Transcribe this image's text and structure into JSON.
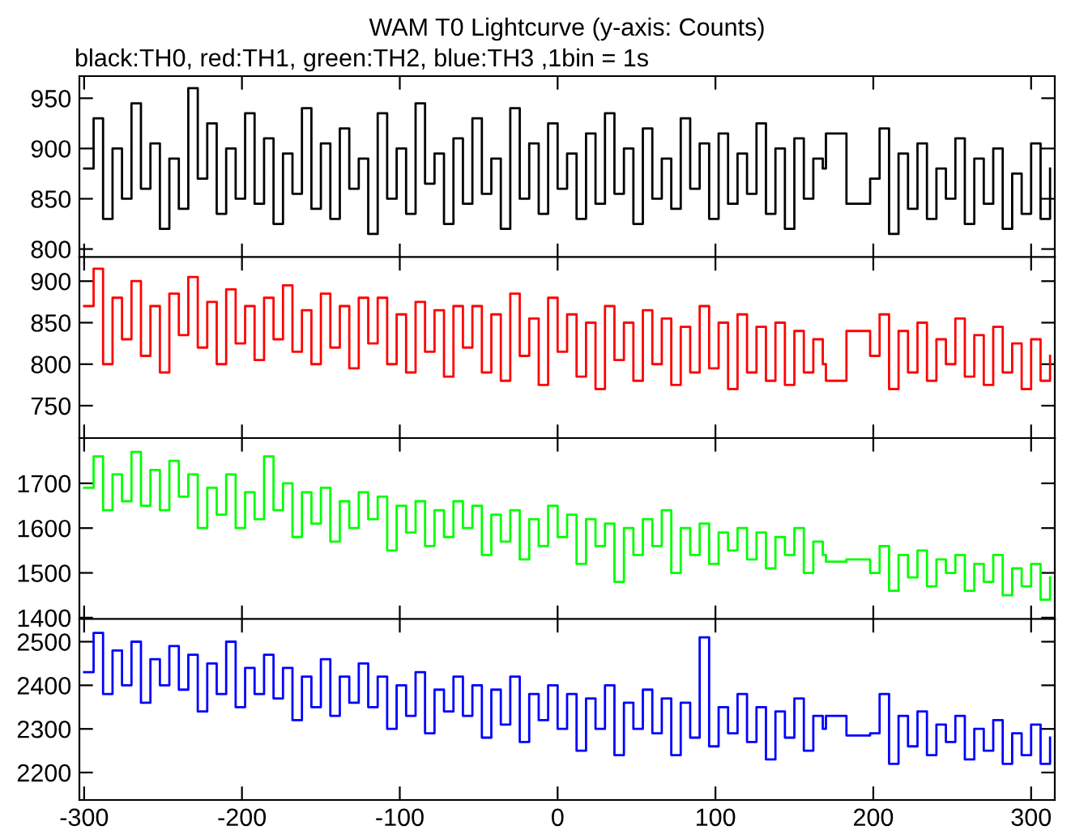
{
  "chart_data": [
    {
      "type": "step",
      "title": "WAM T0 Lightcurve (y-axis: Counts)",
      "subtitle": "black:TH0, red:TH1, green:TH2, blue:TH3 ,1bin = 1s",
      "x": [
        -300,
        -294,
        -288,
        -282,
        -276,
        -270,
        -264,
        -258,
        -252,
        -246,
        -240,
        -234,
        -228,
        -222,
        -216,
        -210,
        -204,
        -198,
        -192,
        -186,
        -180,
        -174,
        -168,
        -162,
        -156,
        -150,
        -144,
        -138,
        -132,
        -126,
        -120,
        -114,
        -108,
        -102,
        -96,
        -90,
        -84,
        -78,
        -72,
        -66,
        -60,
        -54,
        -48,
        -42,
        -36,
        -30,
        -24,
        -18,
        -12,
        -6,
        0,
        6,
        12,
        18,
        24,
        30,
        36,
        42,
        48,
        54,
        60,
        66,
        72,
        78,
        84,
        90,
        96,
        102,
        108,
        114,
        120,
        126,
        132,
        138,
        144,
        150,
        156,
        162,
        168,
        170,
        183,
        198,
        204,
        210,
        216,
        222,
        228,
        234,
        240,
        246,
        252,
        258,
        264,
        270,
        276,
        282,
        288,
        294,
        300,
        306,
        312
      ],
      "series": [
        {
          "color": "#000000",
          "values": [
            880,
            930,
            830,
            900,
            850,
            945,
            860,
            905,
            820,
            890,
            840,
            960,
            870,
            925,
            835,
            900,
            850,
            935,
            845,
            910,
            825,
            895,
            855,
            940,
            840,
            905,
            830,
            920,
            860,
            890,
            815,
            935,
            850,
            900,
            835,
            945,
            865,
            895,
            825,
            910,
            845,
            930,
            855,
            890,
            820,
            940,
            850,
            905,
            835,
            925,
            860,
            895,
            830,
            915,
            845,
            935,
            855,
            900,
            825,
            920,
            850,
            890,
            840,
            930,
            860,
            905,
            830,
            915,
            845,
            895,
            855,
            925,
            835,
            900,
            820,
            910,
            850,
            890,
            880,
            915,
            845,
            870,
            920,
            815,
            895,
            840,
            905,
            830,
            880,
            850,
            910,
            825,
            890,
            845,
            900,
            820,
            875,
            835,
            905,
            830,
            880
          ]
        }
      ],
      "xlim": [
        -303,
        315
      ],
      "ylim": [
        792,
        972
      ],
      "xticks": [
        -300,
        -200,
        -100,
        0,
        100,
        200,
        300
      ],
      "yticks": [
        800,
        850,
        900,
        950
      ],
      "tick_labels": "y"
    },
    {
      "type": "step",
      "x": [
        -300,
        -294,
        -288,
        -282,
        -276,
        -270,
        -264,
        -258,
        -252,
        -246,
        -240,
        -234,
        -228,
        -222,
        -216,
        -210,
        -204,
        -198,
        -192,
        -186,
        -180,
        -174,
        -168,
        -162,
        -156,
        -150,
        -144,
        -138,
        -132,
        -126,
        -120,
        -114,
        -108,
        -102,
        -96,
        -90,
        -84,
        -78,
        -72,
        -66,
        -60,
        -54,
        -48,
        -42,
        -36,
        -30,
        -24,
        -18,
        -12,
        -6,
        0,
        6,
        12,
        18,
        24,
        30,
        36,
        42,
        48,
        54,
        60,
        66,
        72,
        78,
        84,
        90,
        96,
        102,
        108,
        114,
        120,
        126,
        132,
        138,
        144,
        150,
        156,
        162,
        168,
        170,
        183,
        198,
        204,
        210,
        216,
        222,
        228,
        234,
        240,
        246,
        252,
        258,
        264,
        270,
        276,
        282,
        288,
        294,
        300,
        306,
        312
      ],
      "series": [
        {
          "color": "#ff0000",
          "values": [
            870,
            915,
            800,
            880,
            830,
            900,
            810,
            870,
            790,
            885,
            835,
            905,
            820,
            875,
            800,
            890,
            825,
            870,
            805,
            880,
            830,
            895,
            815,
            865,
            800,
            885,
            820,
            870,
            795,
            880,
            825,
            880,
            800,
            860,
            790,
            875,
            815,
            865,
            785,
            870,
            820,
            870,
            790,
            860,
            780,
            885,
            810,
            855,
            775,
            880,
            815,
            860,
            785,
            850,
            770,
            870,
            805,
            850,
            780,
            865,
            800,
            855,
            775,
            845,
            790,
            870,
            795,
            850,
            770,
            860,
            790,
            845,
            780,
            850,
            775,
            840,
            790,
            830,
            800,
            780,
            840,
            810,
            860,
            770,
            840,
            790,
            850,
            780,
            830,
            800,
            855,
            785,
            835,
            775,
            845,
            790,
            825,
            770,
            830,
            780,
            810
          ]
        }
      ],
      "xlim": [
        -303,
        315
      ],
      "ylim": [
        711,
        929
      ],
      "xticks": [
        -300,
        -200,
        -100,
        0,
        100,
        200,
        300
      ],
      "yticks": [
        750,
        800,
        850,
        900
      ],
      "tick_labels": "y"
    },
    {
      "type": "step",
      "x": [
        -300,
        -294,
        -288,
        -282,
        -276,
        -270,
        -264,
        -258,
        -252,
        -246,
        -240,
        -234,
        -228,
        -222,
        -216,
        -210,
        -204,
        -198,
        -192,
        -186,
        -180,
        -174,
        -168,
        -162,
        -156,
        -150,
        -144,
        -138,
        -132,
        -126,
        -120,
        -114,
        -108,
        -102,
        -96,
        -90,
        -84,
        -78,
        -72,
        -66,
        -60,
        -54,
        -48,
        -42,
        -36,
        -30,
        -24,
        -18,
        -12,
        -6,
        0,
        6,
        12,
        18,
        24,
        30,
        36,
        42,
        48,
        54,
        60,
        66,
        72,
        78,
        84,
        90,
        96,
        102,
        108,
        114,
        120,
        126,
        132,
        138,
        144,
        150,
        156,
        162,
        168,
        170,
        183,
        198,
        204,
        210,
        216,
        222,
        228,
        234,
        240,
        246,
        252,
        258,
        264,
        270,
        276,
        282,
        288,
        294,
        300,
        306,
        312
      ],
      "series": [
        {
          "color": "#00ff00",
          "values": [
            1690,
            1760,
            1640,
            1720,
            1660,
            1770,
            1650,
            1730,
            1640,
            1750,
            1670,
            1720,
            1600,
            1690,
            1630,
            1720,
            1600,
            1680,
            1620,
            1760,
            1640,
            1700,
            1580,
            1680,
            1610,
            1690,
            1570,
            1660,
            1600,
            1680,
            1620,
            1670,
            1550,
            1650,
            1590,
            1660,
            1560,
            1640,
            1580,
            1660,
            1600,
            1650,
            1540,
            1630,
            1570,
            1640,
            1530,
            1620,
            1560,
            1650,
            1580,
            1630,
            1520,
            1620,
            1560,
            1610,
            1480,
            1600,
            1540,
            1620,
            1560,
            1640,
            1500,
            1600,
            1540,
            1610,
            1520,
            1590,
            1550,
            1600,
            1530,
            1590,
            1510,
            1580,
            1540,
            1600,
            1500,
            1570,
            1540,
            1525,
            1530,
            1500,
            1560,
            1460,
            1540,
            1490,
            1550,
            1470,
            1530,
            1500,
            1540,
            1460,
            1520,
            1480,
            1540,
            1450,
            1510,
            1470,
            1520,
            1440,
            1490
          ]
        }
      ],
      "xlim": [
        -303,
        315
      ],
      "ylim": [
        1397,
        1801
      ],
      "xticks": [
        -300,
        -200,
        -100,
        0,
        100,
        200,
        300
      ],
      "yticks": [
        1400,
        1500,
        1600,
        1700
      ],
      "tick_labels": "y"
    },
    {
      "type": "step",
      "x": [
        -300,
        -294,
        -288,
        -282,
        -276,
        -270,
        -264,
        -258,
        -252,
        -246,
        -240,
        -234,
        -228,
        -222,
        -216,
        -210,
        -204,
        -198,
        -192,
        -186,
        -180,
        -174,
        -168,
        -162,
        -156,
        -150,
        -144,
        -138,
        -132,
        -126,
        -120,
        -114,
        -108,
        -102,
        -96,
        -90,
        -84,
        -78,
        -72,
        -66,
        -60,
        -54,
        -48,
        -42,
        -36,
        -30,
        -24,
        -18,
        -12,
        -6,
        0,
        6,
        12,
        18,
        24,
        30,
        36,
        42,
        48,
        54,
        60,
        66,
        72,
        78,
        84,
        90,
        96,
        102,
        108,
        114,
        120,
        126,
        132,
        138,
        144,
        150,
        156,
        162,
        168,
        170,
        183,
        198,
        204,
        210,
        216,
        222,
        228,
        234,
        240,
        246,
        252,
        258,
        264,
        270,
        276,
        282,
        288,
        294,
        300,
        306,
        312
      ],
      "series": [
        {
          "color": "#0000ff",
          "values": [
            2430,
            2520,
            2380,
            2480,
            2400,
            2500,
            2360,
            2460,
            2400,
            2490,
            2390,
            2470,
            2340,
            2450,
            2380,
            2500,
            2350,
            2440,
            2380,
            2470,
            2370,
            2440,
            2320,
            2420,
            2350,
            2460,
            2330,
            2420,
            2360,
            2450,
            2350,
            2420,
            2300,
            2400,
            2330,
            2430,
            2290,
            2390,
            2340,
            2420,
            2330,
            2400,
            2280,
            2390,
            2310,
            2420,
            2270,
            2380,
            2320,
            2400,
            2300,
            2380,
            2250,
            2370,
            2300,
            2400,
            2240,
            2360,
            2300,
            2390,
            2290,
            2370,
            2240,
            2360,
            2280,
            2510,
            2260,
            2350,
            2290,
            2380,
            2270,
            2350,
            2230,
            2340,
            2280,
            2370,
            2250,
            2330,
            2300,
            2330,
            2285,
            2290,
            2380,
            2220,
            2330,
            2260,
            2340,
            2240,
            2310,
            2270,
            2330,
            2230,
            2300,
            2250,
            2320,
            2220,
            2290,
            2240,
            2310,
            2220,
            2280
          ]
        }
      ],
      "xlim": [
        -303,
        315
      ],
      "ylim": [
        2137,
        2552
      ],
      "xticks": [
        -300,
        -200,
        -100,
        0,
        100,
        200,
        300
      ],
      "yticks": [
        2200,
        2300,
        2400,
        2500
      ]
    }
  ]
}
